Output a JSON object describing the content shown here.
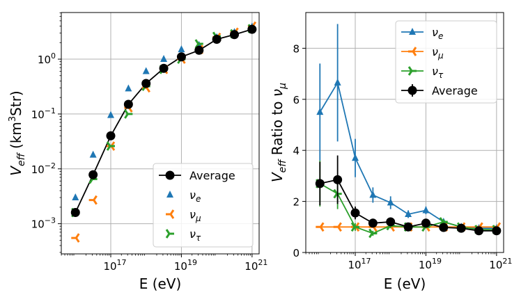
{
  "chart_data": [
    {
      "type": "scatter",
      "yscale": "log",
      "xscale": "log",
      "xlabel": "E (eV)",
      "ylabel_main": "V",
      "ylabel_sub": "eff",
      "ylabel_rest": " (km",
      "ylabel_sup": "3",
      "ylabel_end": "Str)",
      "xlim_log10": [
        15.6,
        21.2
      ],
      "ylim_log10": [
        -3.55,
        0.85
      ],
      "xtick_log10": [
        17,
        19,
        21
      ],
      "xtick_labels": [
        "10",
        "10",
        "10"
      ],
      "xtick_exps": [
        "17",
        "19",
        "21"
      ],
      "ytick_log10": [
        -3,
        -2,
        -1,
        0
      ],
      "ytick_labels": [
        "10",
        "10",
        "10",
        "10"
      ],
      "ytick_exps": [
        "−3",
        "−2",
        "−1",
        "0"
      ],
      "grid": true,
      "legend_position": "lower-right",
      "series": [
        {
          "name": "Average",
          "sym": "",
          "sub": "",
          "color": "#000000",
          "marker": "circle",
          "line": true,
          "x": [
            16.0,
            16.5,
            17.0,
            17.5,
            18.0,
            18.5,
            19.0,
            19.5,
            20.0,
            20.5,
            21.0
          ],
          "y": [
            0.0016,
            0.0078,
            0.04,
            0.15,
            0.36,
            0.68,
            1.1,
            1.45,
            2.3,
            2.8,
            3.5
          ]
        },
        {
          "name": "",
          "sym": "ν",
          "sub": "e",
          "color": "#1f77b4",
          "marker": "triangle-up",
          "line": false,
          "x": [
            16.0,
            16.5,
            17.0,
            17.5,
            18.0,
            18.5,
            19.0,
            19.5,
            20.0,
            20.5,
            21.0
          ],
          "y": [
            0.003,
            0.018,
            0.095,
            0.29,
            0.6,
            1.0,
            1.5,
            1.8,
            2.5,
            3.1,
            3.9
          ]
        },
        {
          "name": "",
          "sym": "ν",
          "sub": "μ",
          "color": "#ff7f0e",
          "marker": "tri-left",
          "line": false,
          "x": [
            16.0,
            16.5,
            17.0,
            17.5,
            18.0,
            18.5,
            19.0,
            19.5,
            20.0,
            20.5,
            21.0
          ],
          "y": [
            0.00055,
            0.0027,
            0.026,
            0.13,
            0.3,
            0.65,
            1.0,
            1.5,
            2.5,
            3.1,
            4.0
          ]
        },
        {
          "name": "",
          "sym": "ν",
          "sub": "τ",
          "color": "#2ca02c",
          "marker": "tri-right",
          "line": false,
          "x": [
            16.0,
            16.5,
            17.0,
            17.5,
            18.0,
            18.5,
            19.0,
            19.5,
            20.0,
            20.5,
            21.0
          ],
          "y": [
            0.0016,
            0.0065,
            0.026,
            0.1,
            0.32,
            0.65,
            1.0,
            1.9,
            2.6,
            2.9,
            3.6
          ]
        }
      ]
    },
    {
      "type": "line",
      "xscale": "log",
      "xlabel": "E (eV)",
      "ylabel_main": "V",
      "ylabel_sub": "eff",
      "ylabel_rest": " Ratio to ",
      "ylabel_sym": "ν",
      "ylabel_sym_sub": "μ",
      "xlim_log10": [
        15.6,
        21.2
      ],
      "ylim": [
        0,
        9.4
      ],
      "xtick_log10": [
        17,
        19,
        21
      ],
      "xtick_labels": [
        "10",
        "10",
        "10"
      ],
      "xtick_exps": [
        "17",
        "19",
        "21"
      ],
      "yticks": [
        0,
        2,
        4,
        6,
        8
      ],
      "ytick_labels": [
        "0",
        "2",
        "4",
        "6",
        "8"
      ],
      "grid": true,
      "legend_position": "top-right",
      "series": [
        {
          "name": "",
          "sym": "ν",
          "sub": "e",
          "color": "#1f77b4",
          "marker": "triangle-up",
          "x": [
            16.0,
            16.5,
            17.0,
            17.5,
            18.0,
            18.5,
            19.0,
            19.5,
            20.0,
            20.5,
            21.0
          ],
          "y": [
            5.5,
            6.65,
            3.7,
            2.25,
            1.95,
            1.5,
            1.65,
            1.2,
            1.0,
            0.95,
            0.95
          ],
          "err": [
            1.9,
            2.3,
            0.75,
            0.3,
            0.25,
            0.15,
            0.15,
            0.1,
            0.05,
            0.05,
            0.05
          ]
        },
        {
          "name": "",
          "sym": "ν",
          "sub": "μ",
          "color": "#ff7f0e",
          "marker": "tri-left",
          "x": [
            16.0,
            16.5,
            17.0,
            17.5,
            18.0,
            18.5,
            19.0,
            19.5,
            20.0,
            20.5,
            21.0
          ],
          "y": [
            1.0,
            1.0,
            1.0,
            1.0,
            1.0,
            1.0,
            1.0,
            1.0,
            1.0,
            1.0,
            1.0
          ],
          "err": [
            0,
            0,
            0,
            0,
            0,
            0,
            0,
            0,
            0,
            0,
            0
          ]
        },
        {
          "name": "",
          "sym": "ν",
          "sub": "τ",
          "color": "#2ca02c",
          "marker": "tri-right",
          "x": [
            16.0,
            16.5,
            17.0,
            17.5,
            18.0,
            18.5,
            19.0,
            19.5,
            20.0,
            20.5,
            21.0
          ],
          "y": [
            2.7,
            2.3,
            1.0,
            0.75,
            1.05,
            1.0,
            1.0,
            1.2,
            1.0,
            0.9,
            0.9
          ],
          "err": [
            0.9,
            0.6,
            0.15,
            0.1,
            0.1,
            0.05,
            0.05,
            0.1,
            0.05,
            0.05,
            0.05
          ]
        },
        {
          "name": "Average",
          "sym": "",
          "sub": "",
          "color": "#000000",
          "marker": "circle",
          "x": [
            16.0,
            16.5,
            17.0,
            17.5,
            18.0,
            18.5,
            19.0,
            19.5,
            20.0,
            20.5,
            21.0
          ],
          "y": [
            2.7,
            2.85,
            1.55,
            1.15,
            1.2,
            1.0,
            1.15,
            0.98,
            0.95,
            0.85,
            0.85
          ],
          "err": [
            0.85,
            0.95,
            0.25,
            0.12,
            0.1,
            0.08,
            0.1,
            0.05,
            0.05,
            0.05,
            0.05
          ]
        }
      ]
    }
  ]
}
